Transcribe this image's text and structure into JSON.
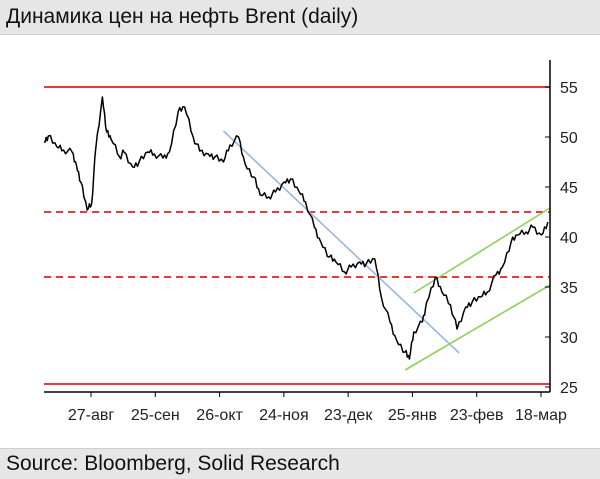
{
  "header": {
    "title": "Динамика цен на нефть Brent (daily)"
  },
  "footer": {
    "source": "Source: Bloomberg, Solid Research"
  },
  "chart_data": {
    "type": "line",
    "title": "Динамика цен на нефть Brent (daily)",
    "xlabel": "",
    "ylabel": "",
    "x_ticks": [
      "27-авг",
      "25-сен",
      "26-окт",
      "24-ноя",
      "23-дек",
      "25-янв",
      "23-фев",
      "18-мар"
    ],
    "y_ticks": [
      25,
      30,
      35,
      40,
      45,
      50,
      55
    ],
    "ylim": [
      24.5,
      57.5
    ],
    "x_range": [
      "2015-08-04",
      "2016-03-25"
    ],
    "y_axis_side": "right",
    "grid": false,
    "legend": "none",
    "colors": {
      "price": "#000000",
      "level": "#e02020",
      "trend": "#9ab8e0",
      "channel": "#8fd15a"
    },
    "series": [
      {
        "values_x": [
          "2015-08-04",
          "2015-08-06",
          "2015-08-10",
          "2015-08-13",
          "2015-08-17",
          "2015-08-19",
          "2015-08-21",
          "2015-08-24",
          "2015-08-26",
          "2015-08-28",
          "2015-08-31",
          "2015-09-02",
          "2015-09-04",
          "2015-09-08",
          "2015-09-10",
          "2015-09-14",
          "2015-09-17",
          "2015-09-21",
          "2015-09-24",
          "2015-09-28",
          "2015-10-01",
          "2015-10-05",
          "2015-10-08",
          "2015-10-12",
          "2015-10-15",
          "2015-10-19",
          "2015-10-22",
          "2015-10-26",
          "2015-10-29",
          "2015-11-02",
          "2015-11-05",
          "2015-11-09",
          "2015-11-12",
          "2015-11-16",
          "2015-11-19",
          "2015-11-23",
          "2015-11-26",
          "2015-11-30",
          "2015-12-03",
          "2015-12-07",
          "2015-12-10",
          "2015-12-14",
          "2015-12-17",
          "2015-12-21",
          "2015-12-24",
          "2015-12-28",
          "2015-12-31",
          "2016-01-04",
          "2016-01-07",
          "2016-01-11",
          "2016-01-14",
          "2016-01-18",
          "2016-01-20",
          "2016-01-22",
          "2016-01-26",
          "2016-01-28",
          "2016-02-01",
          "2016-02-04",
          "2016-02-08",
          "2016-02-11",
          "2016-02-15",
          "2016-02-18",
          "2016-02-22",
          "2016-02-25",
          "2016-02-29",
          "2016-03-03",
          "2016-03-07",
          "2016-03-10",
          "2016-03-14",
          "2016-03-17",
          "2016-03-21",
          "2016-03-24"
        ],
        "values_y": [
          49.5,
          50.1,
          49.0,
          48.7,
          48.5,
          47.2,
          45.5,
          42.7,
          43.3,
          49.0,
          54.0,
          50.5,
          49.8,
          48.0,
          48.5,
          47.0,
          47.5,
          48.5,
          48.3,
          47.9,
          48.5,
          52.5,
          53.0,
          50.0,
          48.6,
          48.3,
          48.0,
          47.5,
          49.2,
          50.0,
          47.3,
          46.0,
          44.2,
          44.0,
          44.5,
          45.5,
          45.8,
          44.5,
          43.5,
          41.0,
          39.5,
          38.0,
          37.5,
          36.5,
          37.0,
          37.5,
          37.3,
          37.8,
          34.0,
          31.5,
          29.7,
          28.5,
          27.8,
          30.5,
          31.5,
          33.5,
          36.0,
          34.5,
          33.2,
          30.8,
          33.0,
          33.5,
          34.0,
          34.5,
          36.2,
          37.0,
          39.5,
          40.2,
          40.5,
          41.0,
          40.2,
          41.5
        ]
      }
    ],
    "horizontal_levels": [
      {
        "value": 55.0,
        "style": "solid"
      },
      {
        "value": 42.5,
        "style": "dashed"
      },
      {
        "value": 36.0,
        "style": "dashed"
      },
      {
        "value": 25.3,
        "style": "solid"
      }
    ],
    "trend_lines": [
      {
        "kind": "downtrend",
        "from": [
          "2015-10-26",
          50.6
        ],
        "to": [
          "2016-02-12",
          28.4
        ]
      },
      {
        "kind": "channel-upper",
        "from": [
          "2016-01-22",
          34.4
        ],
        "to": [
          "2016-03-25",
          42.9
        ]
      },
      {
        "kind": "channel-lower",
        "from": [
          "2016-01-18",
          26.7
        ],
        "to": [
          "2016-03-25",
          35.2
        ]
      }
    ]
  }
}
